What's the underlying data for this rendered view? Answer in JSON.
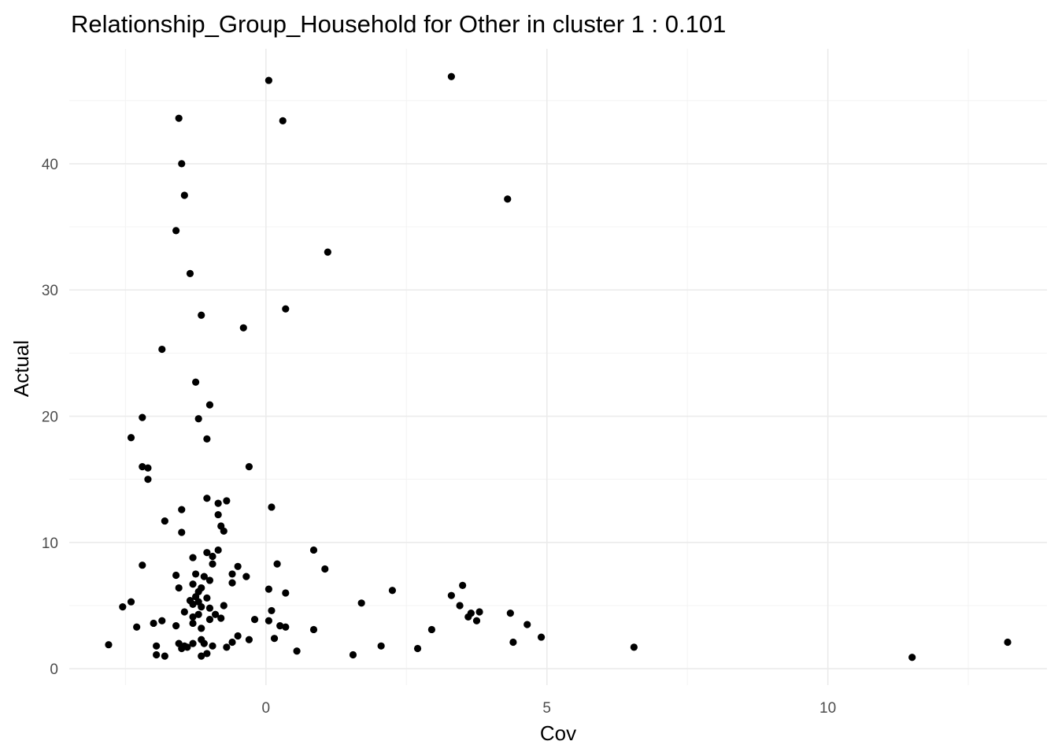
{
  "chart_data": {
    "type": "scatter",
    "title": "Relationship_Group_Household for Other in cluster 1 : 0.101",
    "xlabel": "Cov",
    "ylabel": "Actual",
    "xlim": [
      -3.5,
      13.9
    ],
    "ylim": [
      -1.3,
      49.1
    ],
    "x_ticks": [
      0,
      5,
      10
    ],
    "x_tick_labels": [
      "0",
      "5",
      "10"
    ],
    "y_ticks": [
      0,
      10,
      20,
      30,
      40
    ],
    "y_tick_labels": [
      "0",
      "10",
      "20",
      "30",
      "40"
    ],
    "grid": true,
    "point_color": "#000000",
    "points": [
      [
        0.05,
        46.6
      ],
      [
        3.3,
        46.9
      ],
      [
        -1.55,
        43.6
      ],
      [
        0.3,
        43.4
      ],
      [
        -1.5,
        40.0
      ],
      [
        -1.45,
        37.5
      ],
      [
        4.3,
        37.2
      ],
      [
        -1.6,
        34.7
      ],
      [
        1.1,
        33.0
      ],
      [
        -1.35,
        31.3
      ],
      [
        0.35,
        28.5
      ],
      [
        -1.15,
        28.0
      ],
      [
        -0.4,
        27.0
      ],
      [
        -1.85,
        25.3
      ],
      [
        -1.25,
        22.7
      ],
      [
        -1.0,
        20.9
      ],
      [
        -2.2,
        19.9
      ],
      [
        -1.2,
        19.8
      ],
      [
        -2.4,
        18.3
      ],
      [
        -1.05,
        18.2
      ],
      [
        -2.2,
        16.0
      ],
      [
        -2.1,
        15.9
      ],
      [
        -0.3,
        16.0
      ],
      [
        -2.1,
        15.0
      ],
      [
        -1.05,
        13.5
      ],
      [
        -0.7,
        13.3
      ],
      [
        -0.85,
        13.1
      ],
      [
        0.1,
        12.8
      ],
      [
        -1.5,
        12.6
      ],
      [
        -0.85,
        12.2
      ],
      [
        -1.8,
        11.7
      ],
      [
        -0.8,
        11.3
      ],
      [
        -0.75,
        10.9
      ],
      [
        -1.5,
        10.8
      ],
      [
        0.85,
        9.4
      ],
      [
        -0.85,
        9.4
      ],
      [
        -1.05,
        9.2
      ],
      [
        -0.95,
        8.9
      ],
      [
        -1.3,
        8.8
      ],
      [
        0.2,
        8.3
      ],
      [
        -0.95,
        8.3
      ],
      [
        -2.2,
        8.2
      ],
      [
        -0.5,
        8.1
      ],
      [
        1.05,
        7.9
      ],
      [
        -0.6,
        7.5
      ],
      [
        -1.25,
        7.5
      ],
      [
        -1.6,
        7.4
      ],
      [
        -0.35,
        7.3
      ],
      [
        -1.1,
        7.3
      ],
      [
        -1.0,
        7.0
      ],
      [
        -0.6,
        6.8
      ],
      [
        -1.3,
        6.7
      ],
      [
        3.5,
        6.6
      ],
      [
        -1.55,
        6.4
      ],
      [
        -1.15,
        6.4
      ],
      [
        0.05,
        6.3
      ],
      [
        2.25,
        6.2
      ],
      [
        -1.2,
        6.1
      ],
      [
        0.35,
        6.0
      ],
      [
        3.3,
        5.8
      ],
      [
        -1.25,
        5.7
      ],
      [
        -1.05,
        5.6
      ],
      [
        -1.35,
        5.4
      ],
      [
        -1.2,
        5.3
      ],
      [
        -2.4,
        5.3
      ],
      [
        1.7,
        5.2
      ],
      [
        -1.3,
        5.1
      ],
      [
        3.45,
        5.0
      ],
      [
        -0.75,
        5.0
      ],
      [
        -1.15,
        4.9
      ],
      [
        -2.55,
        4.9
      ],
      [
        -1.0,
        4.8
      ],
      [
        0.1,
        4.6
      ],
      [
        -1.45,
        4.5
      ],
      [
        3.8,
        4.5
      ],
      [
        3.65,
        4.4
      ],
      [
        4.35,
        4.4
      ],
      [
        -1.2,
        4.3
      ],
      [
        -0.9,
        4.3
      ],
      [
        3.6,
        4.1
      ],
      [
        -1.3,
        4.1
      ],
      [
        -0.8,
        4.0
      ],
      [
        -1.0,
        3.9
      ],
      [
        -0.2,
        3.9
      ],
      [
        0.05,
        3.8
      ],
      [
        -1.85,
        3.8
      ],
      [
        3.75,
        3.8
      ],
      [
        -2.0,
        3.6
      ],
      [
        -1.3,
        3.6
      ],
      [
        4.65,
        3.5
      ],
      [
        -1.6,
        3.4
      ],
      [
        0.25,
        3.4
      ],
      [
        -2.3,
        3.3
      ],
      [
        0.35,
        3.3
      ],
      [
        -1.15,
        3.2
      ],
      [
        2.95,
        3.1
      ],
      [
        0.85,
        3.1
      ],
      [
        -0.5,
        2.6
      ],
      [
        4.9,
        2.5
      ],
      [
        0.15,
        2.4
      ],
      [
        -1.15,
        2.3
      ],
      [
        -0.3,
        2.3
      ],
      [
        4.4,
        2.1
      ],
      [
        -0.6,
        2.1
      ],
      [
        13.2,
        2.1
      ],
      [
        -1.1,
        2.0
      ],
      [
        -1.3,
        2.0
      ],
      [
        -1.55,
        2.0
      ],
      [
        -0.95,
        1.8
      ],
      [
        -0.7,
        1.7
      ],
      [
        -1.45,
        1.8
      ],
      [
        -1.5,
        1.6
      ],
      [
        -1.4,
        1.7
      ],
      [
        6.55,
        1.7
      ],
      [
        2.05,
        1.8
      ],
      [
        -2.8,
        1.9
      ],
      [
        -1.95,
        1.8
      ],
      [
        2.7,
        1.6
      ],
      [
        0.55,
        1.4
      ],
      [
        -1.05,
        1.2
      ],
      [
        1.55,
        1.1
      ],
      [
        -1.95,
        1.1
      ],
      [
        -1.15,
        1.0
      ],
      [
        -1.8,
        1.0
      ],
      [
        11.5,
        0.9
      ]
    ]
  }
}
